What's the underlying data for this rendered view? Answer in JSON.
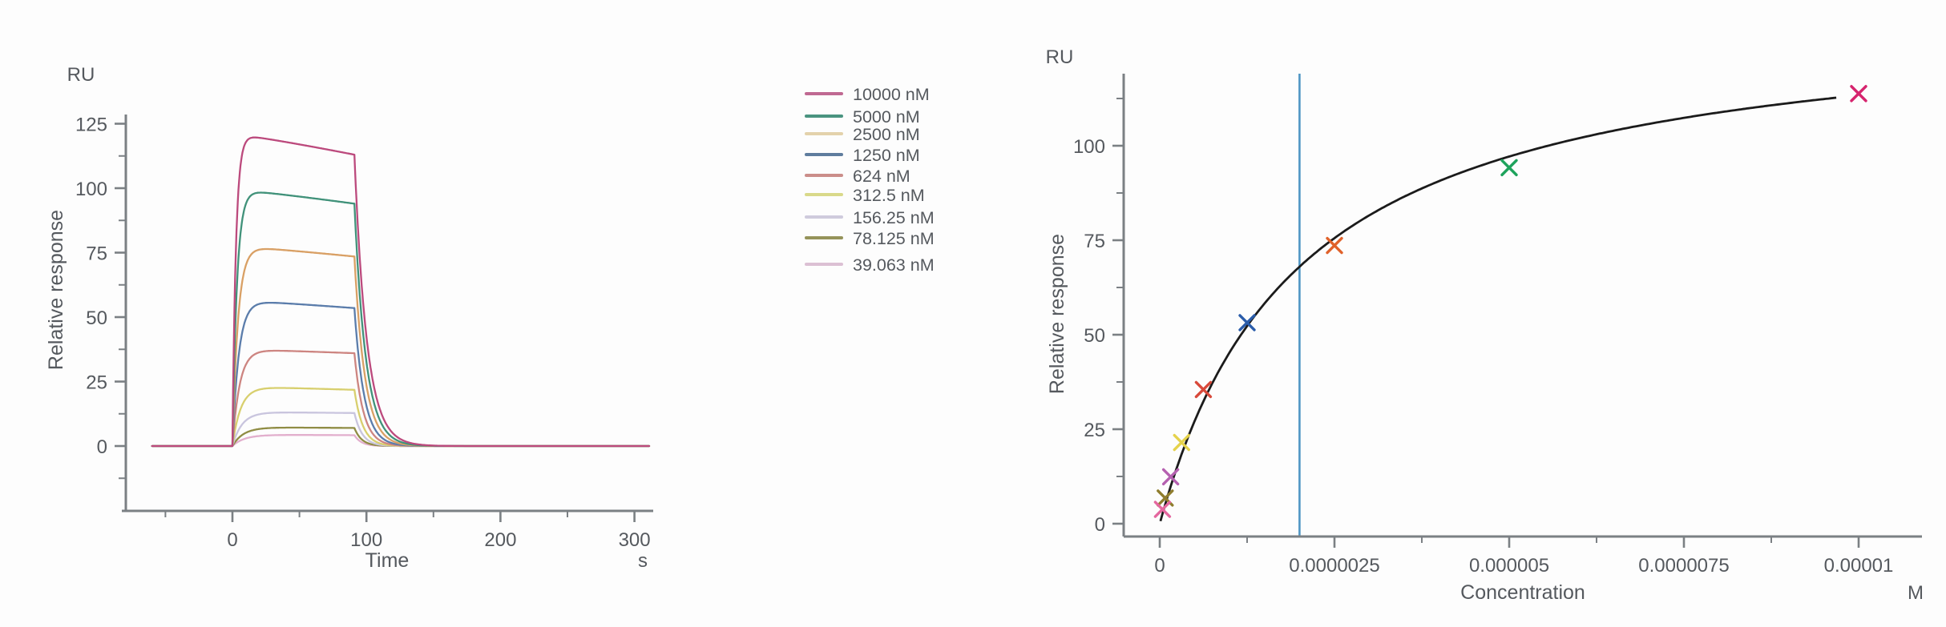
{
  "background_color": "#fdfdfd",
  "text_color": "#55595e",
  "axis_color": "#7b8084",
  "chart_data": [
    {
      "type": "line",
      "name": "spr-sensorgram",
      "y_axis_unit": "RU",
      "ylabel": "Relative response",
      "xlabel": "Time",
      "x_axis_unit": "s",
      "xlim": [
        -81,
        314
      ],
      "ylim": [
        -25.5,
        127
      ],
      "grid": false,
      "xticks": {
        "major": [
          0,
          100,
          200,
          300
        ],
        "labels": [
          "0",
          "100",
          "200",
          "300"
        ],
        "minor": [
          -50,
          50,
          150,
          250
        ]
      },
      "yticks": {
        "major": [
          0,
          25,
          50,
          75,
          100,
          125
        ],
        "labels": [
          "0",
          "25",
          "50",
          "75",
          "100",
          "125"
        ],
        "minor": [
          -12.5,
          12.5,
          37.5,
          62.5,
          87.5,
          112.5
        ]
      },
      "baseline_start_s": -60,
      "injection_start_s": 0,
      "injection_end_s": 91,
      "curve_end_s": 311,
      "legend_position": "outside-top-right",
      "series": [
        {
          "label": "10000 nM",
          "color": "#bc4a7d",
          "legend_color": "#c06992",
          "peak_ru": 121,
          "end_ru": 113,
          "tau_on_s": 2.6,
          "tau_off_s": 9.2
        },
        {
          "label": "5000 nM",
          "color": "#41927a",
          "legend_color": "#4a9480",
          "peak_ru": 99.5,
          "end_ru": 94,
          "tau_on_s": 3.4,
          "tau_off_s": 8.5
        },
        {
          "label": "2500 nM",
          "color": "#d9a065",
          "legend_color": "#e3d2ab",
          "peak_ru": 77.5,
          "end_ru": 73.5,
          "tau_on_s": 4.2,
          "tau_off_s": 7.9
        },
        {
          "label": "1250 nM",
          "color": "#5b7dab",
          "legend_color": "#5f7d9e",
          "peak_ru": 56.5,
          "end_ru": 53.5,
          "tau_on_s": 4.8,
          "tau_off_s": 7.3
        },
        {
          "label": "624 nM",
          "color": "#cd8581",
          "legend_color": "#cb8e8a",
          "peak_ru": 37.5,
          "end_ru": 36,
          "tau_on_s": 5.4,
          "tau_off_s": 6.8
        },
        {
          "label": "312.5 nM",
          "color": "#d8cf6e",
          "legend_color": "#d9d98a",
          "peak_ru": 23,
          "end_ru": 21.8,
          "tau_on_s": 6.2,
          "tau_off_s": 6.3
        },
        {
          "label": "156.25 nM",
          "color": "#c9c5de",
          "legend_color": "#cfcbdd",
          "peak_ru": 13.2,
          "end_ru": 12.8,
          "tau_on_s": 7.2,
          "tau_off_s": 5.9
        },
        {
          "label": "78.125 nM",
          "color": "#908d45",
          "legend_color": "#95935a",
          "peak_ru": 7.3,
          "end_ru": 7.0,
          "tau_on_s": 8.2,
          "tau_off_s": 5.5
        },
        {
          "label": "39.063 nM",
          "color": "#e2afcd",
          "legend_color": "#dcc0d4",
          "peak_ru": 4.4,
          "end_ru": 4.2,
          "tau_on_s": 9.0,
          "tau_off_s": 5.2
        }
      ]
    },
    {
      "type": "scatter",
      "name": "steady-state-affinity-fit",
      "y_axis_unit": "RU",
      "ylabel": "Relative response",
      "xlabel": "Concentration",
      "x_axis_unit": "M",
      "xlim": [
        -5.2e-07,
        1.087e-05
      ],
      "ylim": [
        -3.5,
        119
      ],
      "grid": false,
      "xticks": {
        "major": [
          0,
          2.5e-06,
          5e-06,
          7.5e-06,
          1e-05
        ],
        "labels": [
          "0",
          "0.0000025",
          "0.000005",
          "0.0000075",
          "0.00001"
        ],
        "minor": [
          1.25e-06,
          3.75e-06,
          6.25e-06,
          8.75e-06
        ]
      },
      "yticks": {
        "major": [
          0,
          25,
          50,
          75,
          100
        ],
        "labels": [
          "0",
          "25",
          "50",
          "75",
          "100"
        ],
        "minor": [
          12.5,
          37.5,
          62.5,
          87.5,
          112.5
        ]
      },
      "points": [
        {
          "label": "10000 nM",
          "x_m": 1e-05,
          "y_ru": 113.8,
          "color": "#d6246e",
          "marker": "x"
        },
        {
          "label": "5000 nM",
          "x_m": 5e-06,
          "y_ru": 94.2,
          "color": "#1ea35c",
          "marker": "x"
        },
        {
          "label": "2500 nM",
          "x_m": 2.5e-06,
          "y_ru": 73.6,
          "color": "#e0622b",
          "marker": "x"
        },
        {
          "label": "1250 nM",
          "x_m": 1.25e-06,
          "y_ru": 53.2,
          "color": "#2a5caa",
          "marker": "x"
        },
        {
          "label": "624 nM",
          "x_m": 6.24e-07,
          "y_ru": 35.5,
          "color": "#d8493a",
          "marker": "x"
        },
        {
          "label": "312.5 nM",
          "x_m": 3.125e-07,
          "y_ru": 21.5,
          "color": "#e5d24b",
          "marker": "x"
        },
        {
          "label": "156.25 nM",
          "x_m": 1.5625e-07,
          "y_ru": 12.4,
          "color": "#b560b0",
          "marker": "x"
        },
        {
          "label": "78.125 nM",
          "x_m": 7.8125e-08,
          "y_ru": 6.8,
          "color": "#8f7d2e",
          "marker": "x"
        },
        {
          "label": "39.063 nM",
          "x_m": 3.9063e-08,
          "y_ru": 3.8,
          "color": "#e4679f",
          "marker": "x"
        }
      ],
      "fit_curve": {
        "model": "one-site-steady-state",
        "rmax_ru": 136,
        "kd_m": 2e-06,
        "color": "#1b1b1b",
        "x_start_m": 1e-08,
        "x_end_m": 9.68e-06
      },
      "kd_marker_line": {
        "x_m": 2e-06,
        "color": "#4f96c4"
      }
    }
  ]
}
